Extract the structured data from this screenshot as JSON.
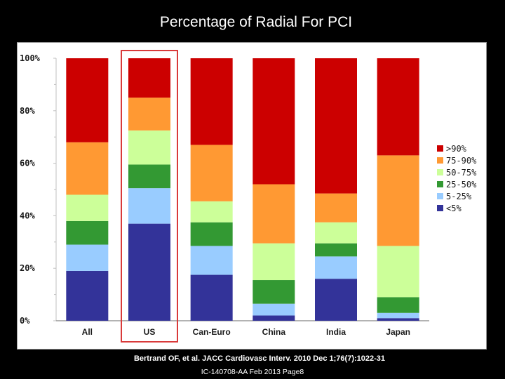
{
  "slide": {
    "title": "Percentage of Radial For PCI",
    "citation": "Bertrand OF, et al. JACC Cardiovasc Interv. 2010 Dec 1;76(7):1022-31",
    "footer": "IC-140708-AA Feb 2013 Page8"
  },
  "chart_data": {
    "type": "bar",
    "stacked": true,
    "title": "",
    "xlabel": "",
    "ylabel": "",
    "ylim": [
      0,
      100
    ],
    "yticks": [
      "0%",
      "20%",
      "40%",
      "60%",
      "80%",
      "100%"
    ],
    "grid": false,
    "legend_position": "right",
    "categories": [
      "All",
      "US",
      "Can-Euro",
      "China",
      "India",
      "Japan"
    ],
    "highlight_category": "US",
    "highlight_color": "#d93a3a",
    "series": [
      {
        "name": "<5%",
        "color": "#333399",
        "values": [
          19,
          37,
          17.5,
          2,
          16,
          1
        ]
      },
      {
        "name": "5-25%",
        "color": "#99ccff",
        "values": [
          10,
          13.5,
          11,
          4.5,
          8.5,
          2
        ]
      },
      {
        "name": "25-50%",
        "color": "#339933",
        "values": [
          9,
          9,
          9,
          9,
          5,
          6
        ]
      },
      {
        "name": "50-75%",
        "color": "#ccff99",
        "values": [
          10,
          13,
          8,
          14,
          8,
          19.5
        ]
      },
      {
        "name": "75-90%",
        "color": "#ff9933",
        "values": [
          20,
          12.5,
          21.5,
          22.5,
          11,
          34.5
        ]
      },
      {
        "name": ">90%",
        "color": "#cc0000",
        "values": [
          32,
          15,
          33,
          48,
          51.5,
          37
        ]
      }
    ]
  }
}
